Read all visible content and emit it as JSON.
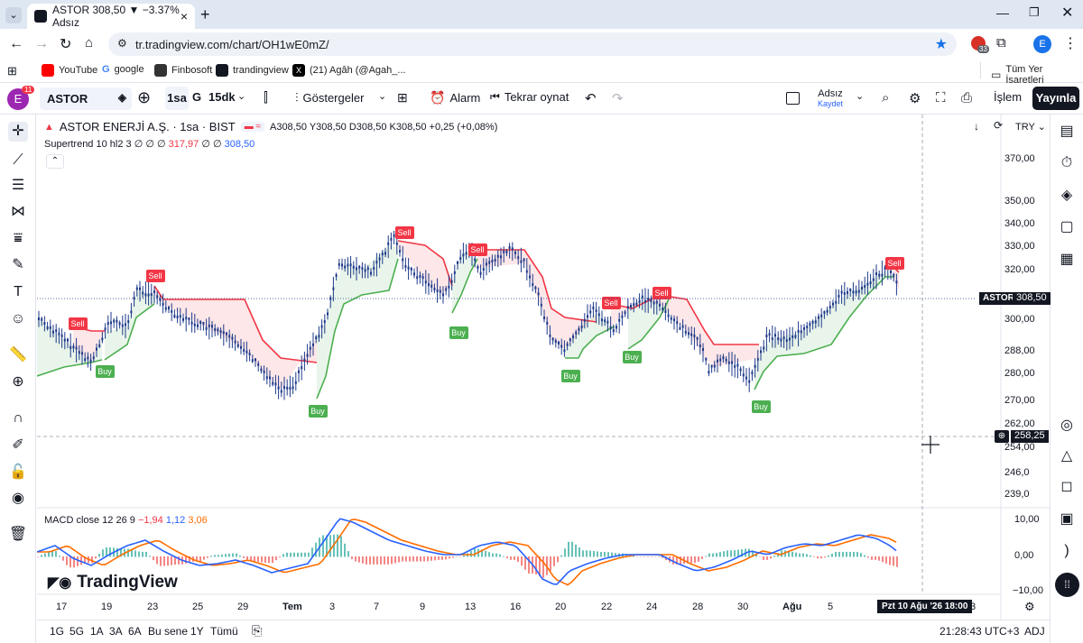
{
  "browser": {
    "tab_title": "ASTOR 308,50 ▼ −3.37% Adsız",
    "url": "tr.tradingview.com/chart/OH1wE0mZ/",
    "profile_letter": "E",
    "ext_badge": "33",
    "bookmarks": [
      "YouTube",
      "google",
      "Finbosoft",
      "trandingview",
      "(21) Agâh (@Agah_..."
    ],
    "all_bookmarks": "Tüm Yer İşaretleri"
  },
  "toolbar": {
    "avatar_letter": "E",
    "avatar_badge": "11",
    "symbol": "ASTOR",
    "interval_1": "1sa",
    "interval_2": "G",
    "interval_3": "15dk",
    "indicators": "Göstergeler",
    "alarm": "Alarm",
    "replay": "Tekrar oynat",
    "layout_name": "Adsız",
    "layout_save": "Kaydet",
    "trade": "İşlem",
    "publish": "Yayınla"
  },
  "legend": {
    "title": "ASTOR ENERJİ A.Ş. · 1sa · BIST",
    "ohlc": "A308,50  Y308,50  D308,50  K308,50  +0,25 (+0,08%)",
    "supertrend_label": "Supertrend 10 hl2 3",
    "supertrend_flags": "∅ ∅ ∅",
    "supertrend_v1": "317,97",
    "supertrend_flags2": "∅ ∅",
    "supertrend_v2": "308,50",
    "macd_label": "MACD close 12 26 9",
    "macd_v1": "−1,94",
    "macd_v2": "1,12",
    "macd_v3": "3,06",
    "currency": "TRY"
  },
  "price_axis": {
    "ticks": [
      "370,00",
      "350,00",
      "340,00",
      "330,00",
      "320,00",
      "300,00",
      "288,00",
      "280,00",
      "270,00",
      "262,00",
      "254,00",
      "246,0",
      "239,0"
    ],
    "symbol_tag": "ASTOR",
    "last_price": "308,50",
    "crosshair_price": "258,25",
    "macd_ticks": [
      "10,00",
      "0,00",
      "−10,00"
    ]
  },
  "time_axis": {
    "ticks": [
      "17",
      "19",
      "23",
      "25",
      "29",
      "Tem",
      "3",
      "7",
      "9",
      "13",
      "16",
      "20",
      "22",
      "24",
      "28",
      "30",
      "Ağu",
      "5"
    ],
    "crosshair_label": "Pzt 10 Ağu '26   18:00",
    "last_tick": "3"
  },
  "signals": {
    "buy": "Buy",
    "sell": "Sell"
  },
  "bottom": {
    "ranges": [
      "1G",
      "5G",
      "1A",
      "3A",
      "6A",
      "Bu sene",
      "1Y",
      "Tümü"
    ],
    "clock": "21:28:43 UTC+3",
    "adj": "ADJ"
  },
  "logo_text": "TradingView",
  "colors": {
    "up": "#4caf50",
    "down": "#f23645",
    "candle": "#1e3a8a",
    "macd": "#2962ff",
    "signal": "#ff6d00",
    "publish_bg": "#131722"
  }
}
